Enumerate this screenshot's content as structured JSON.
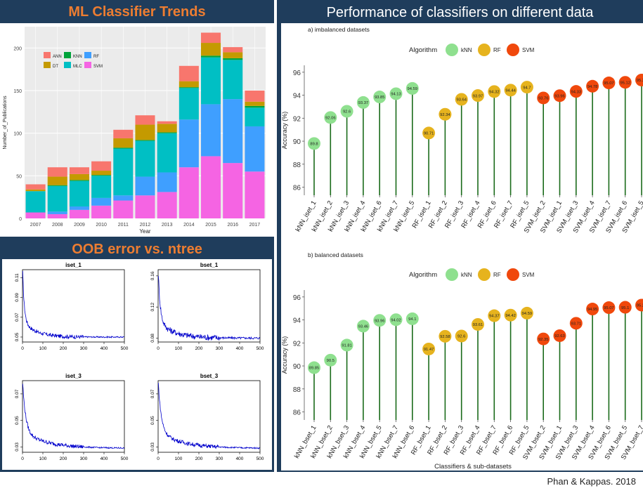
{
  "credit": "Phan & Kappas. 2018",
  "panels": {
    "trends_title": "ML Classifier Trends",
    "oob_title": "OOB error vs. ntree",
    "perf_title": "Performance of classifiers on different data"
  },
  "colors": {
    "navy": "#1f3d5c",
    "accent": "#ed7d31",
    "ANN": "#f8766d",
    "DT": "#c49a00",
    "KNN": "#00a33b",
    "MLC": "#00bfc4",
    "RF": "#3f9fff",
    "SVM": "#f564e3",
    "kNN_dot": "#8fe08f",
    "RF_dot": "#e6b31e",
    "SVM_dot": "#f0480c",
    "stem": "#1a6b1a"
  },
  "chart_data": [
    {
      "id": "trends",
      "type": "bar",
      "stacked": true,
      "xlabel": "Year",
      "ylabel": "Number_of_Publications",
      "ylim": [
        0,
        225
      ],
      "yticks": [
        0,
        50,
        100,
        150,
        200
      ],
      "grid": true,
      "legend_position": "top-left",
      "categories": [
        "2007",
        "2008",
        "2009",
        "2010",
        "2011",
        "2012",
        "2013",
        "2014",
        "2015",
        "2016",
        "2017"
      ],
      "series": [
        {
          "name": "SVM",
          "values": [
            7,
            5,
            10,
            15,
            21,
            27,
            31,
            60,
            73,
            65,
            55
          ]
        },
        {
          "name": "RF",
          "values": [
            0,
            3,
            4,
            9,
            6,
            22,
            23,
            56,
            61,
            75,
            53
          ]
        },
        {
          "name": "MLC",
          "values": [
            25,
            30,
            30,
            26,
            55,
            42,
            46,
            37,
            55,
            46,
            22
          ]
        },
        {
          "name": "KNN",
          "values": [
            0,
            1,
            1,
            1,
            1,
            1,
            1,
            1,
            2,
            2,
            2
          ]
        },
        {
          "name": "DT",
          "values": [
            2,
            10,
            7,
            5,
            11,
            18,
            10,
            7,
            15,
            7,
            5
          ]
        },
        {
          "name": "ANN",
          "values": [
            6,
            11,
            8,
            11,
            10,
            11,
            3,
            18,
            12,
            6,
            13
          ]
        }
      ]
    },
    {
      "id": "oob",
      "type": "line",
      "panels": [
        {
          "title": "iset_1",
          "xlim": [
            0,
            500
          ],
          "xticks": [
            0,
            100,
            200,
            300,
            400,
            500
          ],
          "yticks": [
            0.05,
            0.07,
            0.09,
            0.11
          ],
          "ylim": [
            0.045,
            0.118
          ],
          "start": 0.115,
          "floor": 0.05,
          "scale": 8,
          "noise": 0.002
        },
        {
          "title": "bset_1",
          "xlim": [
            0,
            500
          ],
          "xticks": [
            0,
            100,
            200,
            300,
            400,
            500
          ],
          "yticks": [
            0.08,
            0.12,
            0.16
          ],
          "ylim": [
            0.075,
            0.168
          ],
          "start": 0.163,
          "floor": 0.08,
          "scale": 10,
          "noise": 0.004
        },
        {
          "title": "iset_3",
          "xlim": [
            0,
            500
          ],
          "xticks": [
            0,
            100,
            200,
            300,
            400,
            500
          ],
          "yticks": [
            0.03,
            0.05,
            0.07
          ],
          "ylim": [
            0.026,
            0.08
          ],
          "start": 0.078,
          "floor": 0.029,
          "scale": 15,
          "noise": 0.0015
        },
        {
          "title": "bset_3",
          "xlim": [
            0,
            500
          ],
          "xticks": [
            0,
            100,
            200,
            300,
            400,
            500
          ],
          "yticks": [
            0.03,
            0.05,
            0.07
          ],
          "ylim": [
            0.026,
            0.08
          ],
          "start": 0.078,
          "floor": 0.029,
          "scale": 15,
          "noise": 0.0015
        }
      ]
    },
    {
      "id": "imbalanced",
      "type": "scatter",
      "subtitle": "a) imbalanced datasets",
      "legend_title": "Algorithm",
      "legend": [
        "kNN",
        "RF",
        "SVM"
      ],
      "ylabel": "Accuracy (%)",
      "ylim": [
        85.3,
        96.6
      ],
      "yticks": [
        86,
        88,
        90,
        92,
        94,
        96
      ],
      "points": [
        {
          "label": "kNN_iset_1",
          "alg": "kNN",
          "value": 89.8
        },
        {
          "label": "kNN_iset_2",
          "alg": "kNN",
          "value": 92.06
        },
        {
          "label": "kNN_iset_3",
          "alg": "kNN",
          "value": 92.6
        },
        {
          "label": "kNN_iset_4",
          "alg": "kNN",
          "value": 93.37
        },
        {
          "label": "kNN_iset_6",
          "alg": "kNN",
          "value": 93.85
        },
        {
          "label": "kNN_iset_7",
          "alg": "kNN",
          "value": 94.13
        },
        {
          "label": "kNN_iset_5",
          "alg": "kNN",
          "value": 94.59
        },
        {
          "label": "RF_iset_1",
          "alg": "RF",
          "value": 90.71
        },
        {
          "label": "RF_iset_2",
          "alg": "RF",
          "value": 92.34
        },
        {
          "label": "RF_iset_3",
          "alg": "RF",
          "value": 93.64
        },
        {
          "label": "RF_iset_4",
          "alg": "RF",
          "value": 93.97
        },
        {
          "label": "RF_iset_6",
          "alg": "RF",
          "value": 94.32
        },
        {
          "label": "RF_iset_7",
          "alg": "RF",
          "value": 94.44
        },
        {
          "label": "RF_iset_5",
          "alg": "RF",
          "value": 94.7
        },
        {
          "label": "SVM_iset_2",
          "alg": "SVM",
          "value": 93.76
        },
        {
          "label": "SVM_iset_1",
          "alg": "SVM",
          "value": 93.96
        },
        {
          "label": "SVM_iset_3",
          "alg": "SVM",
          "value": 94.33
        },
        {
          "label": "SVM_iset_4",
          "alg": "SVM",
          "value": 94.78
        },
        {
          "label": "SVM_iset_7",
          "alg": "SVM",
          "value": 95.07
        },
        {
          "label": "SVM_iset_6",
          "alg": "SVM",
          "value": 95.12
        },
        {
          "label": "SVM_iset_5",
          "alg": "SVM",
          "value": 95.32
        }
      ]
    },
    {
      "id": "balanced",
      "type": "scatter",
      "subtitle": "b) balanced datasets",
      "legend_title": "Algorithm",
      "legend": [
        "kNN",
        "RF",
        "SVM"
      ],
      "ylabel": "Accuracy (%)",
      "xlabel": "Classifiers & sub-datasets",
      "ylim": [
        85.3,
        96.6
      ],
      "yticks": [
        86,
        88,
        90,
        92,
        94,
        96
      ],
      "points": [
        {
          "label": "kNN_bset_1",
          "alg": "kNN",
          "value": 89.85
        },
        {
          "label": "kNN_bset_2",
          "alg": "kNN",
          "value": 90.5
        },
        {
          "label": "kNN_bset_3",
          "alg": "kNN",
          "value": 91.81
        },
        {
          "label": "kNN_bset_4",
          "alg": "kNN",
          "value": 93.46
        },
        {
          "label": "kNN_bset_5",
          "alg": "kNN",
          "value": 93.96
        },
        {
          "label": "kNN_bset_7",
          "alg": "kNN",
          "value": 94.02
        },
        {
          "label": "kNN_bset_6",
          "alg": "kNN",
          "value": 94.1
        },
        {
          "label": "RF_bset_1",
          "alg": "RF",
          "value": 91.47
        },
        {
          "label": "RF_bset_2",
          "alg": "RF",
          "value": 92.58
        },
        {
          "label": "RF_bset_3",
          "alg": "RF",
          "value": 92.6
        },
        {
          "label": "RF_bset_4",
          "alg": "RF",
          "value": 93.61
        },
        {
          "label": "RF_bset_7",
          "alg": "RF",
          "value": 94.37
        },
        {
          "label": "RF_bset_6",
          "alg": "RF",
          "value": 94.42
        },
        {
          "label": "RF_bset_5",
          "alg": "RF",
          "value": 94.59
        },
        {
          "label": "SVM_bset_2",
          "alg": "SVM",
          "value": 92.35
        },
        {
          "label": "SVM_bset_1",
          "alg": "SVM",
          "value": 92.63
        },
        {
          "label": "SVM_bset_3",
          "alg": "SVM",
          "value": 93.71
        },
        {
          "label": "SVM_bset_4",
          "alg": "SVM",
          "value": 94.95
        },
        {
          "label": "SVM_bset_6",
          "alg": "SVM",
          "value": 95.07
        },
        {
          "label": "SVM_bset_5",
          "alg": "SVM",
          "value": 95.1
        },
        {
          "label": "SVM_bset_7",
          "alg": "SVM",
          "value": 95.29
        }
      ]
    }
  ]
}
